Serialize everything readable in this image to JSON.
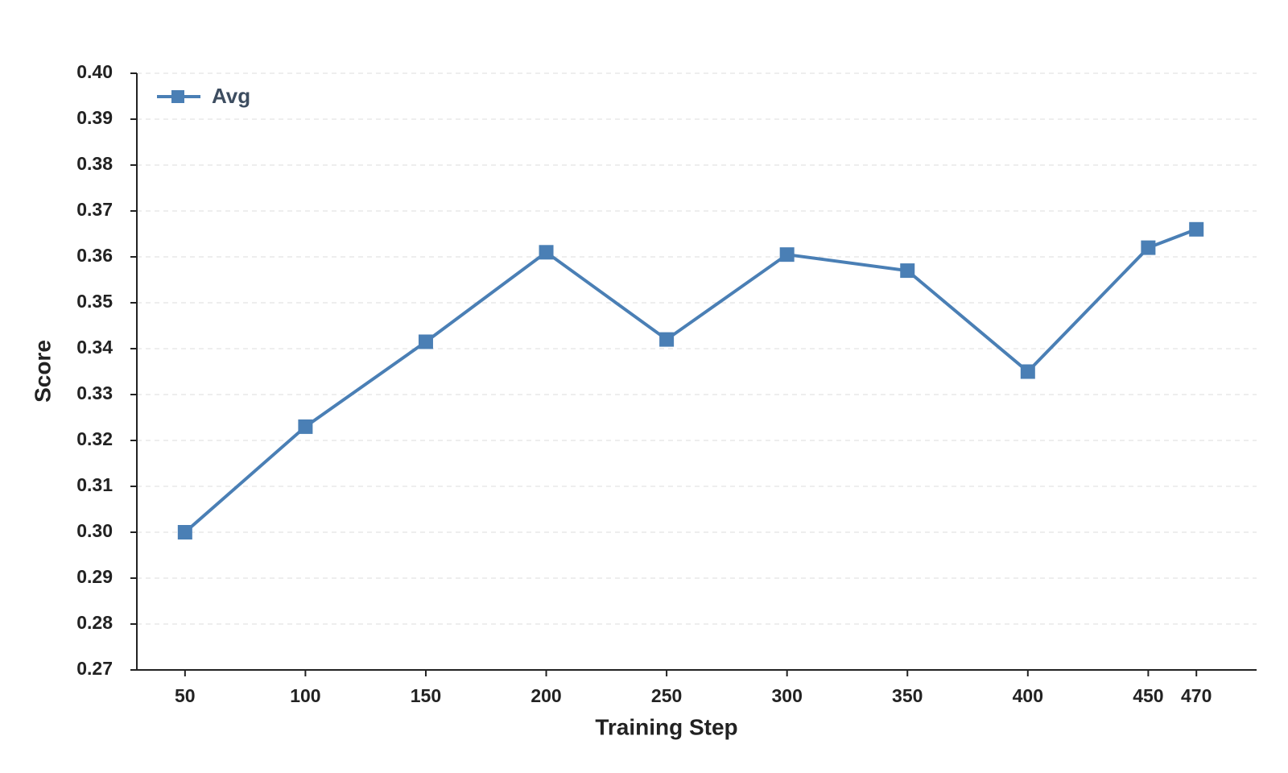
{
  "chart_data": {
    "type": "line",
    "x_label": "Training Step",
    "y_label": "Score",
    "x": [
      50,
      100,
      150,
      200,
      250,
      300,
      350,
      400,
      450,
      470
    ],
    "series": [
      {
        "name": "Avg",
        "color": "#4a7fb5",
        "values": [
          0.3,
          0.323,
          0.3415,
          0.361,
          0.342,
          0.3605,
          0.357,
          0.335,
          0.362,
          0.366
        ]
      }
    ],
    "xlim": [
      30,
      495
    ],
    "xticks": [
      50,
      100,
      150,
      200,
      250,
      300,
      350,
      400,
      450,
      470
    ],
    "ylim": [
      0.27,
      0.4
    ],
    "yticks": [
      0.27,
      0.28,
      0.29,
      {
        "value": 0.3,
        "label": "0.30"
      },
      0.31,
      0.32,
      0.33,
      0.34,
      0.35,
      0.36,
      0.37,
      0.38,
      0.39,
      {
        "value": 0.4,
        "label": "0.40"
      }
    ],
    "grid": true,
    "legend": "upper-left"
  }
}
